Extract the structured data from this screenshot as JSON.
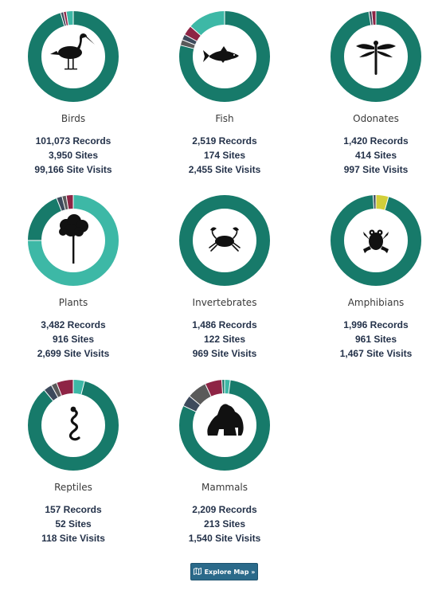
{
  "colors": {
    "primary": "#177a6a",
    "teal_light": "#3db8a6",
    "slate": "#3d4a5c",
    "crimson": "#8e2445",
    "grey": "#5a5a5a",
    "yellow": "#d2cf3a",
    "stat_text": "#24324a",
    "button": "#2b6a8a"
  },
  "taxa": [
    {
      "name": "Birds",
      "icon": "bird-icon",
      "records": "101,073 Records",
      "sites": "3,950 Sites",
      "visits": "99,166 Site Visits",
      "segments": [
        {
          "color": "#177a6a",
          "value": 95.5
        },
        {
          "color": "#3d4a5c",
          "value": 1
        },
        {
          "color": "#8e2445",
          "value": 1
        },
        {
          "color": "#3db8a6",
          "value": 2.5
        }
      ]
    },
    {
      "name": "Fish",
      "icon": "fish-icon",
      "records": "2,519 Records",
      "sites": "174 Sites",
      "visits": "2,455 Site Visits",
      "segments": [
        {
          "color": "#177a6a",
          "value": 79
        },
        {
          "color": "#5a5a5a",
          "value": 2
        },
        {
          "color": "#3d4a5c",
          "value": 2
        },
        {
          "color": "#8e2445",
          "value": 3.5
        },
        {
          "color": "#3db8a6",
          "value": 13.5
        }
      ]
    },
    {
      "name": "Odonates",
      "icon": "dragonfly-icon",
      "records": "1,420 Records",
      "sites": "414 Sites",
      "visits": "997 Site Visits",
      "segments": [
        {
          "color": "#177a6a",
          "value": 97.5
        },
        {
          "color": "#3d4a5c",
          "value": 1
        },
        {
          "color": "#8e2445",
          "value": 1.5
        }
      ]
    },
    {
      "name": "Plants",
      "icon": "tree-icon",
      "records": "3,482 Records",
      "sites": "916 Sites",
      "visits": "2,699 Site Visits",
      "segments": [
        {
          "color": "#3db8a6",
          "value": 75
        },
        {
          "color": "#177a6a",
          "value": 19
        },
        {
          "color": "#3d4a5c",
          "value": 2
        },
        {
          "color": "#5a5a5a",
          "value": 1.5
        },
        {
          "color": "#8e2445",
          "value": 2.5
        }
      ]
    },
    {
      "name": "Invertebrates",
      "icon": "crab-icon",
      "records": "1,486 Records",
      "sites": "122 Sites",
      "visits": "969 Site Visits",
      "segments": [
        {
          "color": "#177a6a",
          "value": 100
        }
      ]
    },
    {
      "name": "Amphibians",
      "icon": "frog-icon",
      "records": "1,996 Records",
      "sites": "961 Sites",
      "visits": "1,467 Site Visits",
      "segments": [
        {
          "color": "#d2cf3a",
          "value": 4.5
        },
        {
          "color": "#177a6a",
          "value": 94.5
        },
        {
          "color": "#3d4a5c",
          "value": 1
        }
      ]
    },
    {
      "name": "Reptiles",
      "icon": "snake-icon",
      "records": "157 Records",
      "sites": "52 Sites",
      "visits": "118 Site Visits",
      "segments": [
        {
          "color": "#3db8a6",
          "value": 4
        },
        {
          "color": "#177a6a",
          "value": 85
        },
        {
          "color": "#3d4a5c",
          "value": 3
        },
        {
          "color": "#5a5a5a",
          "value": 2
        },
        {
          "color": "#8e2445",
          "value": 6
        }
      ]
    },
    {
      "name": "Mammals",
      "icon": "gorilla-icon",
      "records": "2,209 Records",
      "sites": "213 Sites",
      "visits": "1,540 Site Visits",
      "segments": [
        {
          "color": "#3db8a6",
          "value": 2
        },
        {
          "color": "#177a6a",
          "value": 80
        },
        {
          "color": "#3d4a5c",
          "value": 4
        },
        {
          "color": "#5a5a5a",
          "value": 7
        },
        {
          "color": "#8e2445",
          "value": 6
        },
        {
          "color": "#177a6a",
          "value": 1
        }
      ]
    }
  ],
  "explore_button": {
    "label": "Explore Map »",
    "icon": "map-icon"
  }
}
